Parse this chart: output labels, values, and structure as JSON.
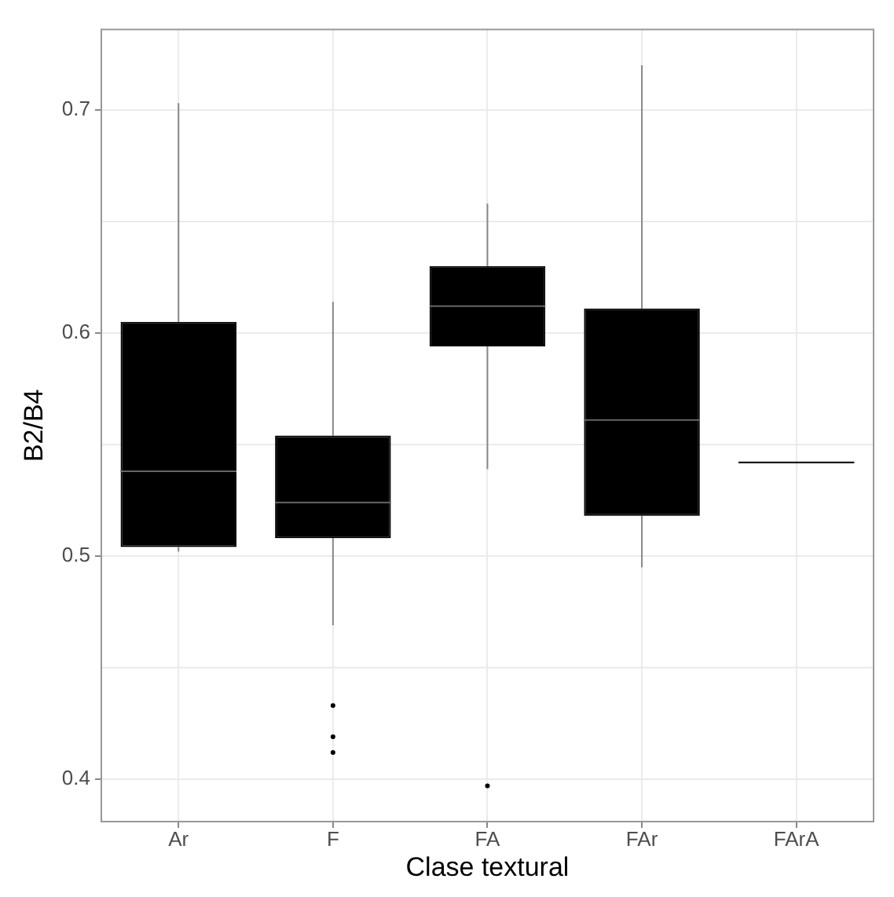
{
  "chart_data": {
    "type": "box",
    "xlabel": "Clase textural",
    "ylabel": "B2/B4",
    "categories": [
      "Ar",
      "F",
      "FA",
      "FAr",
      "FArA"
    ],
    "color": "#000000",
    "boxes": [
      {
        "low": 0.502,
        "q1": 0.504,
        "median": 0.538,
        "q3": 0.605,
        "high": 0.703
      },
      {
        "low": 0.469,
        "q1": 0.508,
        "median": 0.524,
        "q3": 0.554,
        "high": 0.614,
        "outliers": [
          0.433,
          0.419,
          0.412
        ]
      },
      {
        "low": 0.539,
        "q1": 0.594,
        "median": 0.612,
        "q3": 0.63,
        "high": 0.658,
        "outliers": [
          0.397
        ]
      },
      {
        "low": 0.495,
        "q1": 0.518,
        "median": 0.561,
        "q3": 0.611,
        "high": 0.72
      },
      {
        "low": 0.542,
        "q1": 0.542,
        "median": 0.542,
        "q3": 0.542,
        "high": 0.542
      }
    ],
    "ylim": [
      0.381,
      0.736
    ],
    "yticks": [
      0.4,
      {
        "value": 0.45,
        "label": null
      },
      0.5,
      {
        "value": 0.55,
        "label": null
      },
      0.6,
      {
        "value": 0.65,
        "label": null
      },
      0.7
    ],
    "grid": true
  }
}
